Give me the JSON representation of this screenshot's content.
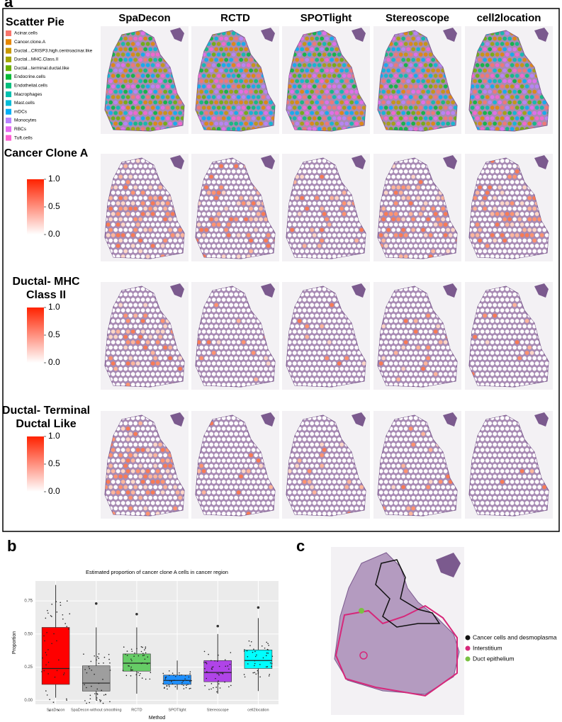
{
  "panel_a": {
    "label": "a",
    "methods": [
      "SpaDecon",
      "RCTD",
      "SPOTlight",
      "Stereoscope",
      "cell2location"
    ],
    "scatter_pie": {
      "title": "Scatter Pie",
      "legend": [
        {
          "name": "Acinar.cells",
          "color": "#f8766d"
        },
        {
          "name": "Cancer.clone.A",
          "color": "#e58700"
        },
        {
          "name": "Ductal...CRISP3.high.centroacinar.like",
          "color": "#c99800"
        },
        {
          "name": "Ductal...MHC.Class.II",
          "color": "#a3a500"
        },
        {
          "name": "Ductal...terminal.ductal.like",
          "color": "#6bb100"
        },
        {
          "name": "Endocrine.cells",
          "color": "#00ba38"
        },
        {
          "name": "Endothelial.cells",
          "color": "#00bf7d"
        },
        {
          "name": "Macrophages",
          "color": "#00c0af"
        },
        {
          "name": "Mast.cells",
          "color": "#00bcd8"
        },
        {
          "name": "mDCs",
          "color": "#00b0f6"
        },
        {
          "name": "Monocytes",
          "color": "#b983ff"
        },
        {
          "name": "RBCs",
          "color": "#e76bf3"
        },
        {
          "name": "Tuft.cells",
          "color": "#fd61d1"
        }
      ]
    },
    "rows": [
      {
        "title": "Cancer Clone A",
        "colorbar": {
          "color": "#ff2200",
          "ticks": [
            {
              "value": 1,
              "label": "1.0"
            },
            {
              "value": 0.5,
              "label": "0.5"
            },
            {
              "value": 0,
              "label": "0.0"
            }
          ]
        }
      },
      {
        "title": "Ductal- MHC Class II",
        "colorbar": {
          "color": "#ff2200",
          "ticks": [
            {
              "value": 1,
              "label": "1.0"
            },
            {
              "value": 0.5,
              "label": "0.5"
            },
            {
              "value": 0,
              "label": "0.0"
            }
          ]
        }
      },
      {
        "title": "Ductal- Terminal Ductal Like",
        "colorbar": {
          "color": "#ff2200",
          "ticks": [
            {
              "value": 1,
              "label": "1.0"
            },
            {
              "value": 0.5,
              "label": "0.5"
            },
            {
              "value": 0,
              "label": "0.0"
            }
          ]
        }
      }
    ]
  },
  "chart_data": {
    "type": "box",
    "panel_label": "b",
    "title": "Estimated proportion of cancer clone A cells in cancer region",
    "x_label": "Method",
    "y_label": "Proportion",
    "categories": [
      "SpaDecon",
      "SpaDecon without smoothing",
      "RCTD",
      "SPOTlight",
      "Stereoscope",
      "cell2location"
    ],
    "boxes": [
      {
        "low": 0.02,
        "q1": 0.12,
        "median": 0.24,
        "q3": 0.55,
        "high": 0.87,
        "outliers": [],
        "color": "#ff0000"
      },
      {
        "low": 0.0,
        "q1": 0.07,
        "median": 0.13,
        "q3": 0.26,
        "high": 0.55,
        "outliers": [
          0.73
        ],
        "color": "#9e9e9e"
      },
      {
        "low": 0.05,
        "q1": 0.22,
        "median": 0.28,
        "q3": 0.35,
        "high": 0.55,
        "outliers": [
          0.65
        ],
        "color": "#66cc66"
      },
      {
        "low": 0.08,
        "q1": 0.12,
        "median": 0.15,
        "q3": 0.19,
        "high": 0.3,
        "outliers": [],
        "color": "#1e90ff"
      },
      {
        "low": 0.05,
        "q1": 0.14,
        "median": 0.21,
        "q3": 0.3,
        "high": 0.5,
        "outliers": [
          0.56
        ],
        "color": "#b044e8"
      },
      {
        "low": 0.07,
        "q1": 0.24,
        "median": 0.3,
        "q3": 0.38,
        "high": 0.62,
        "outliers": [
          0.7
        ],
        "color": "#00ffff"
      }
    ],
    "ylim": [
      -0.03,
      0.9
    ],
    "yticks": [
      {
        "value": 0,
        "label": "0.00"
      },
      {
        "value": 0.25,
        "label": "0.25"
      },
      {
        "value": 0.5,
        "label": "0.50"
      },
      {
        "value": 0.75,
        "label": "0.75"
      }
    ],
    "grid": true
  },
  "panel_c": {
    "label": "c",
    "legend": [
      {
        "name": "Cancer cells and desmoplasma",
        "color": "#111111"
      },
      {
        "name": "Interstitium",
        "color": "#d6287a"
      },
      {
        "name": "Duct epithelium",
        "color": "#7ac143"
      }
    ]
  }
}
